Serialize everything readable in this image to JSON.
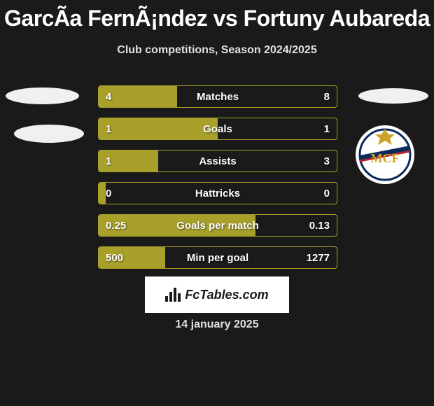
{
  "title": "GarcÃ­a FernÃ¡ndez vs Fortuny Aubareda",
  "subtitle": "Club competitions, Season 2024/2025",
  "date": "14 january 2025",
  "fctables_label": "FcTables.com",
  "colors": {
    "background": "#1a1a1a",
    "bar_border": "#a8a02a",
    "bar_fill": "#a8a02a",
    "text": "#ffffff",
    "subtitle_text": "#e0e0e0"
  },
  "bars": [
    {
      "label": "Matches",
      "left": "4",
      "right": "8",
      "fill_pct": 33
    },
    {
      "label": "Goals",
      "left": "1",
      "right": "1",
      "fill_pct": 50
    },
    {
      "label": "Assists",
      "left": "1",
      "right": "3",
      "fill_pct": 25
    },
    {
      "label": "Hattricks",
      "left": "0",
      "right": "0",
      "fill_pct": 3
    },
    {
      "label": "Goals per match",
      "left": "0.25",
      "right": "0.13",
      "fill_pct": 66
    },
    {
      "label": "Min per goal",
      "left": "500",
      "right": "1277",
      "fill_pct": 28
    }
  ],
  "badge": {
    "name": "real-madrid-badge",
    "circle_outer": "#ffffff",
    "circle_inner": "#0b2b5c",
    "accent_gold": "#c9a227",
    "accent_red": "#b22234"
  }
}
